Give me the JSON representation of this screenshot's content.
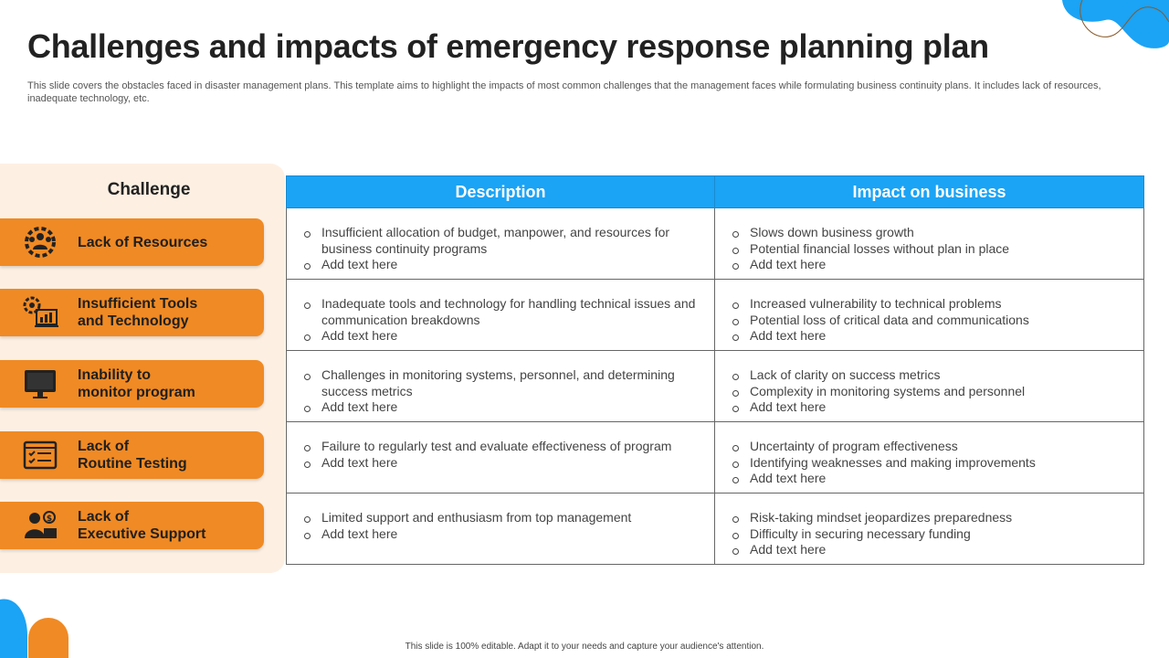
{
  "slide": {
    "title": "Challenges and impacts of emergency response planning plan",
    "subtitle": "This slide covers the obstacles faced in disaster management plans. This template aims to highlight the impacts of most common challenges that the management faces while formulating business continuity plans. It includes lack of resources, inadequate technology, etc.",
    "footer": "This slide is 100% editable. Adapt it to your needs and capture your audience's attention."
  },
  "colors": {
    "accent_orange": "#f08a24",
    "accent_blue": "#1ba3f5",
    "panel_bg": "#fdf0e3"
  },
  "challenges": {
    "header": "Challenge",
    "items": [
      {
        "label": "Lack of Resources",
        "icon": "team-gear-icon"
      },
      {
        "label": "Insufficient Tools\nand Technology",
        "icon": "gear-chart-icon"
      },
      {
        "label": "Inability to\nmonitor  program",
        "icon": "monitor-icon"
      },
      {
        "label": "Lack of\nRoutine Testing",
        "icon": "checklist-screen-icon"
      },
      {
        "label": "Lack of\nExecutive Support",
        "icon": "businessman-money-icon"
      }
    ]
  },
  "table": {
    "headers": [
      "Description",
      "Impact on business"
    ],
    "rows": [
      {
        "description": [
          "Insufficient allocation of budget, manpower, and resources for business continuity programs",
          "Add text here"
        ],
        "impact": [
          "Slows down business growth",
          "Potential financial losses without  plan in place",
          "Add text here"
        ]
      },
      {
        "description": [
          "Inadequate tools and technology for handling technical issues and communication breakdowns",
          "Add text here"
        ],
        "impact": [
          "Increased vulnerability to technical problems",
          "Potential loss of critical data and communications",
          "Add text here"
        ]
      },
      {
        "description": [
          "Challenges in monitoring systems, personnel, and determining success metrics",
          "Add text here"
        ],
        "impact": [
          "Lack of clarity on success metrics",
          "Complexity in monitoring systems and personnel",
          "Add text here"
        ]
      },
      {
        "description": [
          "Failure to regularly test and evaluate  effectiveness of  program",
          "Add text here"
        ],
        "impact": [
          "Uncertainty of program effectiveness",
          "Identifying  weaknesses and making improvements",
          "Add text here"
        ]
      },
      {
        "description": [
          "Limited support and enthusiasm from top management",
          "Add text here"
        ],
        "impact": [
          "Risk-taking mindset jeopardizes preparedness",
          "Difficulty in securing necessary funding",
          "Add text here"
        ]
      }
    ]
  }
}
